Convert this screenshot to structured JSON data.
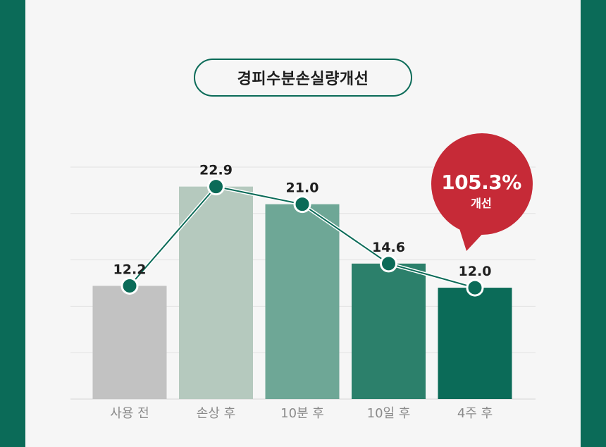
{
  "title": "경피수분손실량개선",
  "badge": {
    "value": "105.3%",
    "label": "개선",
    "color": "#c62a37"
  },
  "colors": {
    "frame": "#0b6b58",
    "panel": "#f6f6f6",
    "line": "#0b6b58",
    "bars": [
      "#c2c2c2",
      "#b5c9be",
      "#6ea796",
      "#2c806b",
      "#0b6b58"
    ]
  },
  "chart_data": {
    "type": "bar",
    "categories": [
      "사용 전",
      "손상 후",
      "10분 후",
      "10일 후",
      "4주 후"
    ],
    "values": [
      12.2,
      22.9,
      21.0,
      14.6,
      12.0
    ],
    "data_labels": [
      "12.2",
      "22.9",
      "21.0",
      "14.6",
      "12.0"
    ],
    "overlay": "line",
    "ylim": [
      0,
      25
    ],
    "grid": true,
    "legend": "none"
  }
}
